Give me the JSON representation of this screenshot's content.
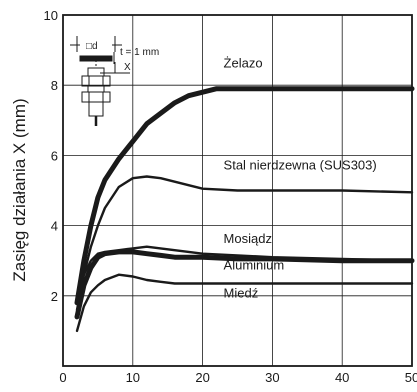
{
  "chart_data": {
    "type": "line",
    "title": "",
    "xlabel": "",
    "ylabel": "Zasięg działania X (mm)",
    "xlim": [
      0,
      50
    ],
    "ylim": [
      0,
      10
    ],
    "x_ticks": [
      0,
      10,
      20,
      30,
      40,
      50
    ],
    "y_ticks": [
      2,
      4,
      6,
      8,
      10
    ],
    "x_tick_labels": [
      "0",
      "10",
      "20",
      "30",
      "40",
      "50"
    ],
    "y_tick_labels": [
      "2",
      "4",
      "6",
      "8",
      "10"
    ],
    "grid": true,
    "legend": "inline labels",
    "series": [
      {
        "name": "Żelazo",
        "emphasis": "bold",
        "x": [
          2,
          3,
          4,
          5,
          6,
          8,
          10,
          12,
          14,
          16,
          18,
          20,
          22,
          25,
          30,
          35,
          40,
          45,
          50
        ],
        "y": [
          1.8,
          3.0,
          4.0,
          4.8,
          5.3,
          5.9,
          6.4,
          6.9,
          7.2,
          7.5,
          7.7,
          7.8,
          7.9,
          7.9,
          7.9,
          7.9,
          7.9,
          7.9,
          7.9
        ]
      },
      {
        "name": "Stal nierdzewna (SUS303)",
        "emphasis": "normal",
        "x": [
          2,
          3,
          4,
          5,
          6,
          8,
          10,
          12,
          14,
          16,
          18,
          20,
          25,
          30,
          40,
          50
        ],
        "y": [
          1.6,
          2.6,
          3.4,
          4.0,
          4.5,
          5.1,
          5.35,
          5.4,
          5.35,
          5.25,
          5.15,
          5.05,
          5.0,
          5.0,
          5.0,
          4.95
        ]
      },
      {
        "name": "Mosiądz",
        "emphasis": "normal",
        "x": [
          2,
          3,
          4,
          5,
          6,
          8,
          10,
          12,
          14,
          16,
          20,
          25,
          30,
          40,
          50
        ],
        "y": [
          1.9,
          2.6,
          3.0,
          3.2,
          3.25,
          3.3,
          3.35,
          3.4,
          3.35,
          3.3,
          3.2,
          3.15,
          3.1,
          3.05,
          3.0
        ]
      },
      {
        "name": "Aluminium",
        "emphasis": "bold",
        "x": [
          2,
          3,
          4,
          5,
          6,
          8,
          10,
          12,
          14,
          16,
          20,
          25,
          30,
          40,
          50
        ],
        "y": [
          1.4,
          2.3,
          2.8,
          3.1,
          3.2,
          3.25,
          3.25,
          3.2,
          3.15,
          3.1,
          3.1,
          3.05,
          3.05,
          3.0,
          3.0
        ]
      },
      {
        "name": "Miedź",
        "emphasis": "normal",
        "x": [
          2,
          3,
          4,
          5,
          6,
          8,
          10,
          12,
          14,
          16,
          20,
          25,
          30,
          40,
          50
        ],
        "y": [
          1.0,
          1.7,
          2.1,
          2.3,
          2.45,
          2.6,
          2.55,
          2.45,
          2.4,
          2.35,
          2.35,
          2.35,
          2.35,
          2.35,
          2.35
        ]
      }
    ],
    "inset": {
      "d_label": "□d",
      "t_label": "t = 1 mm",
      "x_label": "X"
    }
  }
}
